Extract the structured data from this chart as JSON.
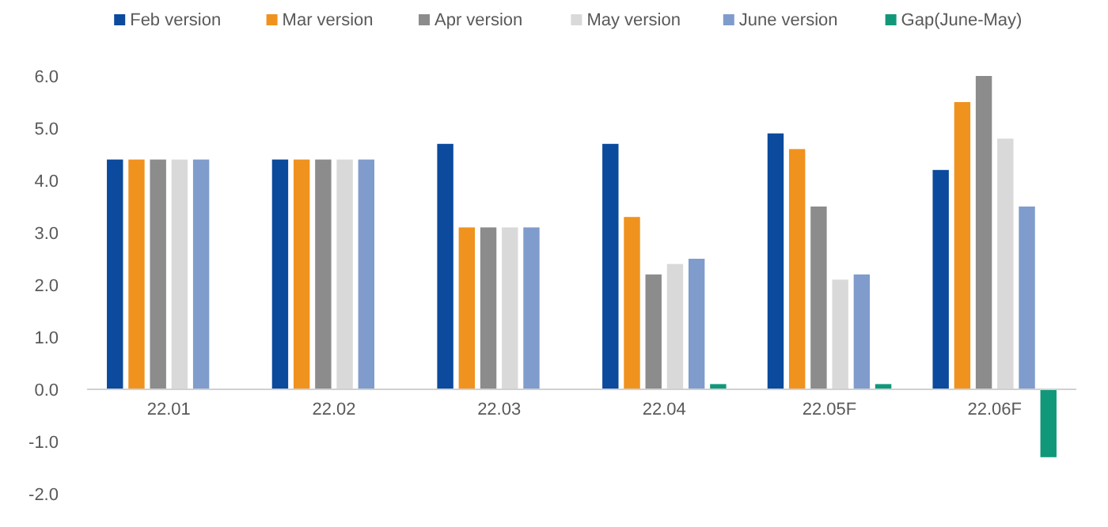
{
  "chart_data": {
    "type": "bar",
    "categories": [
      "22.01",
      "22.02",
      "22.03",
      "22.04",
      "22.05F",
      "22.06F"
    ],
    "series": [
      {
        "name": "Feb version",
        "color": "#0b4a9c",
        "values": [
          4.4,
          4.4,
          4.7,
          4.7,
          4.9,
          4.2
        ]
      },
      {
        "name": "Mar version",
        "color": "#f0921e",
        "values": [
          4.4,
          4.4,
          3.1,
          3.3,
          4.6,
          5.5
        ]
      },
      {
        "name": "Apr version",
        "color": "#8c8c8c",
        "values": [
          4.4,
          4.4,
          3.1,
          2.2,
          3.5,
          6.0
        ]
      },
      {
        "name": "May version",
        "color": "#d9d9d9",
        "values": [
          4.4,
          4.4,
          3.1,
          2.4,
          2.1,
          4.8
        ]
      },
      {
        "name": "June version",
        "color": "#7f9ccc",
        "values": [
          4.4,
          4.4,
          3.1,
          2.5,
          2.2,
          3.5
        ]
      },
      {
        "name": "Gap(June-May)",
        "color": "#11987a",
        "values": [
          0,
          0,
          0,
          0.1,
          0.1,
          -1.3
        ]
      }
    ],
    "ylim": [
      -2,
      6
    ],
    "yticks": [
      {
        "value": -2,
        "label": "-2.0"
      },
      {
        "value": -1,
        "label": "-1.0"
      },
      {
        "value": 0,
        "label": "0.0"
      },
      {
        "value": 1,
        "label": "1.0"
      },
      {
        "value": 2,
        "label": "2.0"
      },
      {
        "value": 3,
        "label": "3.0"
      },
      {
        "value": 4,
        "label": "4.0"
      },
      {
        "value": 5,
        "label": "5.0"
      },
      {
        "value": 6,
        "label": "6.0"
      }
    ],
    "grid": false,
    "legend": "top"
  }
}
